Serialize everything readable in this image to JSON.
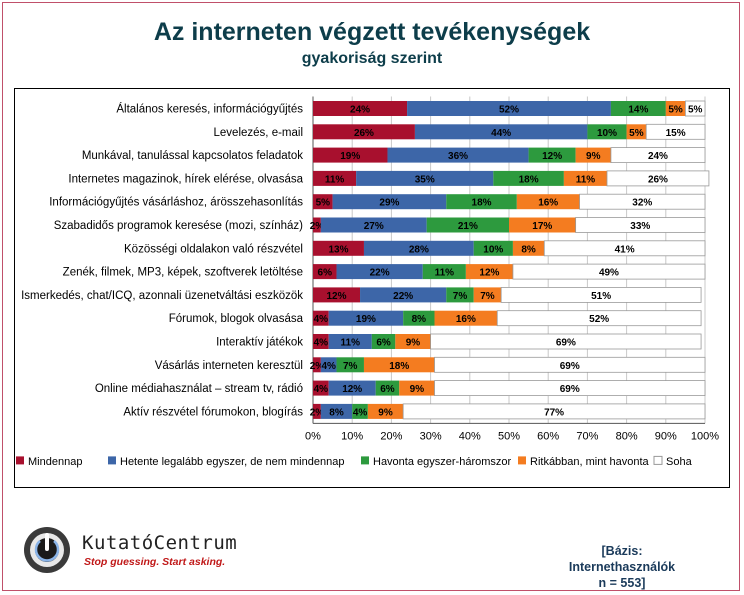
{
  "title": "Az interneten végzett tevékenységek",
  "subtitle": "gyakoriság szerint",
  "footer": {
    "brand": "KutatóCentrum",
    "tagline": "Stop guessing. Start asking.",
    "basis_line1": "[Bázis: Internethasználók",
    "basis_line2": "n = 553]"
  },
  "colors": {
    "Mindennap": "#a8102e",
    "Hetente legalább egyszer, de nem mindennap": "#3d66a8",
    "Havonta egyszer-háromszor": "#2d9a3e",
    "Ritkábban, mint havonta": "#f47c20",
    "Soha": "#ffffff"
  },
  "chart_data": {
    "type": "bar",
    "orientation": "horizontal",
    "stacked": true,
    "title": "Az interneten végzett tevékenységek",
    "subtitle": "gyakoriság szerint",
    "xlim": [
      0,
      100
    ],
    "xticks": [
      "0%",
      "10%",
      "20%",
      "30%",
      "40%",
      "50%",
      "60%",
      "70%",
      "80%",
      "90%",
      "100%"
    ],
    "grid": true,
    "legend_position": "bottom",
    "categories": [
      "Általános keresés, információgyűjtés",
      "Levelezés, e-mail",
      "Munkával, tanulással kapcsolatos feladatok",
      "Internetes magazinok, hírek elérése, olvasása",
      "Információgyűjtés vásárláshoz, árösszehasonlítás",
      "Szabadidős programok keresése (mozi, színház)",
      "Közösségi oldalakon való részvétel",
      "Zenék, filmek, MP3, képek, szoftverek letöltése",
      "Ismerkedés, chat/ICQ, azonnali üzenetváltási eszközök",
      "Fórumok, blogok olvasása",
      "Interaktív játékok",
      "Vásárlás interneten keresztül",
      "Online médiahasználat – stream tv, rádió",
      "Aktív részvétel fórumokon, blogírás"
    ],
    "series": [
      {
        "name": "Mindennap",
        "values": [
          24,
          26,
          19,
          11,
          5,
          2,
          13,
          6,
          12,
          4,
          4,
          2,
          4,
          2
        ]
      },
      {
        "name": "Hetente legalább egyszer, de nem mindennap",
        "values": [
          52,
          44,
          36,
          35,
          29,
          27,
          28,
          22,
          22,
          19,
          11,
          4,
          12,
          8
        ]
      },
      {
        "name": "Havonta egyszer-háromszor",
        "values": [
          14,
          10,
          12,
          18,
          18,
          21,
          10,
          11,
          7,
          8,
          6,
          7,
          6,
          4
        ]
      },
      {
        "name": "Ritkábban, mint havonta",
        "values": [
          5,
          5,
          9,
          11,
          16,
          17,
          8,
          12,
          7,
          16,
          9,
          18,
          9,
          9
        ]
      },
      {
        "name": "Soha",
        "values": [
          5,
          15,
          24,
          26,
          32,
          33,
          41,
          49,
          51,
          52,
          69,
          69,
          69,
          77
        ]
      }
    ]
  }
}
